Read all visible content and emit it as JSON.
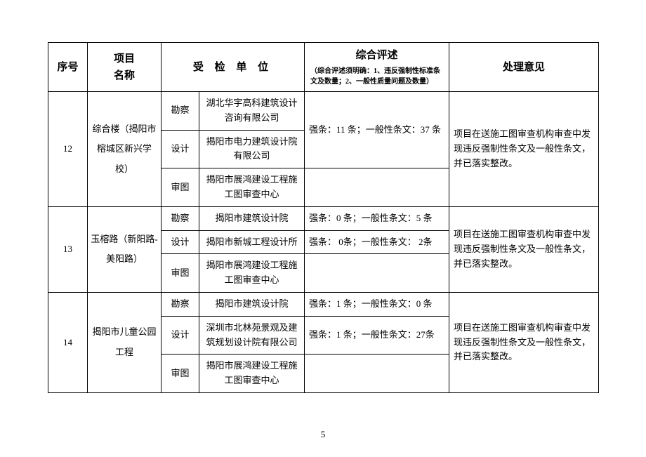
{
  "header": {
    "seq": "序号",
    "project": "项目\n名称",
    "unit_inspected": "受 检 单 位",
    "review_main": "综合评述",
    "review_sub": "（综合评述须明确：1、违反强制性标准条文及数量；2、一般性质量问题及数量）",
    "opinion": "处理意见"
  },
  "roles": {
    "survey": "勘察",
    "design": "设计",
    "review": "审图"
  },
  "rows": [
    {
      "seq": "12",
      "project": "综合楼（揭阳市榕城区新兴学校）",
      "survey_unit": "湖北华宇高科建筑设计咨询有限公司",
      "survey_review": "",
      "design_unit": "揭阳市电力建筑设计院有限公司",
      "design_review": "强条：11 条；一般性条文：37 条",
      "review_unit": "揭阳市展鸿建设工程施工图审查中心",
      "review_review": "",
      "opinion": "项目在送施工图审查机构审查中发现违反强制性条文及一般性条文，并已落实整改。"
    },
    {
      "seq": "13",
      "project": "玉榕路（新阳路-美阳路）",
      "survey_unit": "揭阳市建筑设计院",
      "survey_review": "强条：0 条；一般性条文：5 条",
      "design_unit": "揭阳市新城工程设计所",
      "design_review": "强条： 0条；一般性条文： 2条",
      "review_unit": "揭阳市展鸿建设工程施工图审查中心",
      "review_review": "",
      "opinion": "项目在送施工图审查机构审查中发现违反强制性条文及一般性条文，并已落实整改。"
    },
    {
      "seq": "14",
      "project": "揭阳市儿童公园工程",
      "survey_unit": "揭阳市建筑设计院",
      "survey_review": "强条：1 条；一般性条文：0 条",
      "design_unit": "深圳市北林苑景观及建筑规划设计院有限公司",
      "design_review": "强条：1 条；一般性条文：27条",
      "review_unit": "揭阳市展鸿建设工程施工图审查中心",
      "review_review": "",
      "opinion": "项目在送施工图审查机构审查中发现违反强制性条文及一般性条文，并已落实整改。"
    }
  ],
  "page_number": "5",
  "style": {
    "border_color": "#000000",
    "background_color": "#ffffff",
    "base_font_size": 13,
    "header_font_size": 15,
    "sub_font_size": 10
  }
}
